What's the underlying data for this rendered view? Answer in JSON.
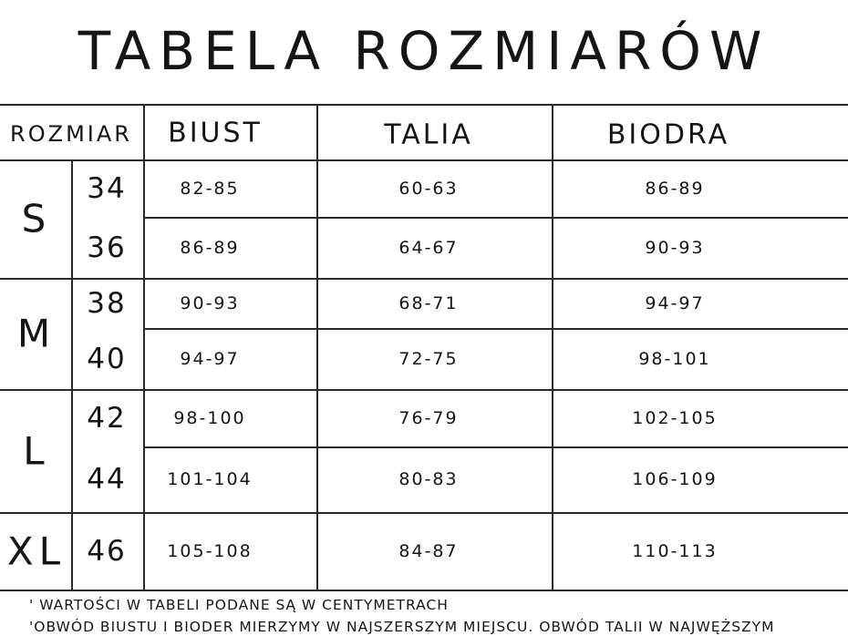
{
  "title": "TABELA ROZMIARÓW",
  "headers": {
    "size": "ROZMIAR",
    "bust": "BIUST",
    "waist": "TALIA",
    "hips": "BIODRA"
  },
  "rows": [
    {
      "letter": "S",
      "sizes": [
        {
          "eu": "34",
          "bust": "82-85",
          "waist": "60-63",
          "hips": "86-89"
        },
        {
          "eu": "36",
          "bust": "86-89",
          "waist": "64-67",
          "hips": "90-93"
        }
      ]
    },
    {
      "letter": "M",
      "sizes": [
        {
          "eu": "38",
          "bust": "90-93",
          "waist": "68-71",
          "hips": "94-97"
        },
        {
          "eu": "40",
          "bust": "94-97",
          "waist": "72-75",
          "hips": "98-101"
        }
      ]
    },
    {
      "letter": "L",
      "sizes": [
        {
          "eu": "42",
          "bust": "98-100",
          "waist": "76-79",
          "hips": "102-105"
        },
        {
          "eu": "44",
          "bust": "101-104",
          "waist": "80-83",
          "hips": "106-109"
        }
      ]
    },
    {
      "letter": "XL",
      "sizes": [
        {
          "eu": "46",
          "bust": "105-108",
          "waist": "84-87",
          "hips": "110-113"
        }
      ]
    }
  ],
  "notes": [
    "' WARTOŚCI W TABELI PODANE SĄ W CENTYMETRACH",
    "'OBWÓD BIUSTU I BIODER MIERZYMY W NAJSZERSZYM MIEJSCU. OBWÓD TALII W NAJWĘŻSZYM"
  ]
}
